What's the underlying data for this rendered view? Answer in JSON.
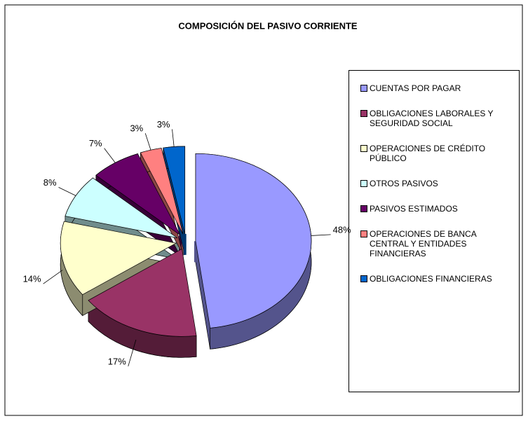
{
  "chart_data": {
    "type": "pie",
    "title": "COMPOSICIÓN DEL PASIVO CORRIENTE",
    "categories": [
      "CUENTAS POR PAGAR",
      "OBLIGACIONES LABORALES Y SEGURIDAD SOCIAL",
      "OPERACIONES  DE CRÉDITO PÚBLICO",
      "OTROS PASIVOS",
      "PASIVOS ESTIMADOS",
      "OPERACIONES DE BANCA CENTRAL Y ENTIDADES FINANCIERAS",
      "OBLIGACIONES FINANCIERAS"
    ],
    "values": [
      48,
      17,
      14,
      8,
      7,
      3,
      3
    ],
    "value_labels": [
      "48%",
      "17%",
      "14%",
      "8%",
      "7%",
      "3%",
      "3%"
    ],
    "colors": [
      "#9999ff",
      "#993366",
      "#ffffcc",
      "#ccffff",
      "#660066",
      "#ff8080",
      "#0066cc"
    ],
    "legend": "right"
  }
}
